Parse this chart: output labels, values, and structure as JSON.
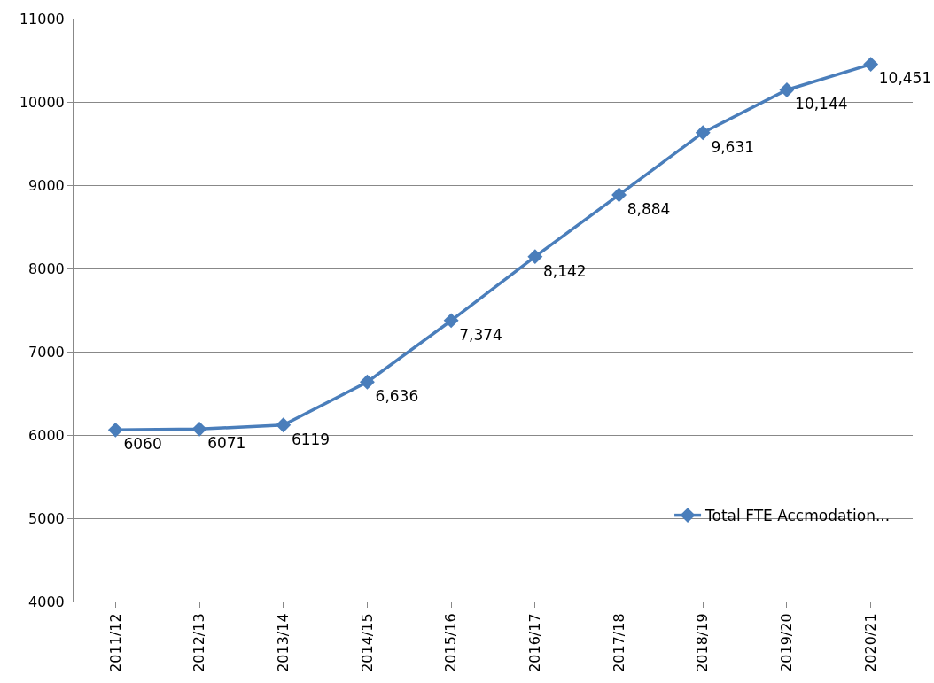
{
  "chart_data": {
    "type": "line",
    "categories": [
      "2011/12",
      "2012/13",
      "2013/14",
      "2014/15",
      "2015/16",
      "2016/17",
      "2017/18",
      "2018/19",
      "2019/20",
      "2020/21"
    ],
    "series": [
      {
        "name": "Total FTE Accmodation...",
        "color": "#4a7ebb",
        "values": [
          6060,
          6071,
          6119,
          6636,
          7374,
          8142,
          8884,
          9631,
          10144,
          10451
        ],
        "value_labels": [
          "6060",
          "6071",
          "6119",
          "6,636",
          "7,374",
          "8,142",
          "8,884",
          "9,631",
          "10,144",
          "10,451"
        ]
      }
    ],
    "ylim": [
      4000,
      11000
    ],
    "yticks": [
      4000,
      5000,
      6000,
      7000,
      8000,
      9000,
      10000,
      11000
    ],
    "grid": "y",
    "legend": "bottom right",
    "marker": "diamond",
    "line_style": "solid"
  }
}
